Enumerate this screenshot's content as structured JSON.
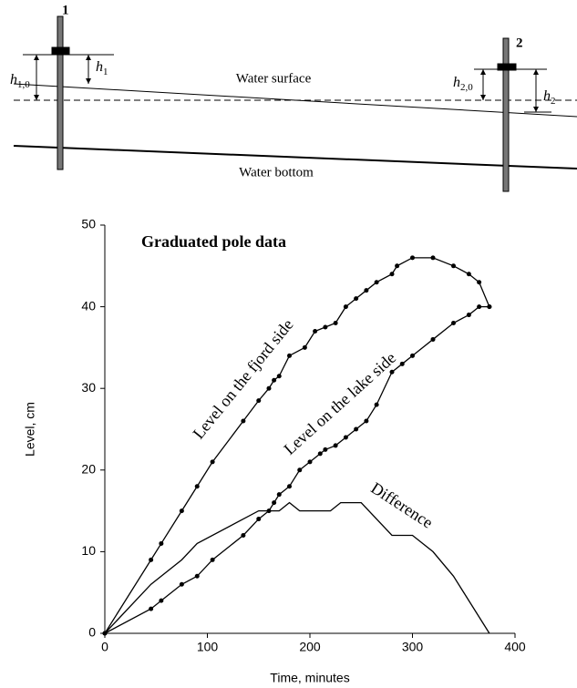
{
  "diagram": {
    "pole_1": "1",
    "pole_2": "2",
    "surface": "Water surface",
    "bottom": "Water bottom",
    "h10": {
      "base": "h",
      "sub": "1,0"
    },
    "h1": {
      "base": "h",
      "sub": "1"
    },
    "h20": {
      "base": "h",
      "sub": "2,0"
    },
    "h2": {
      "base": "h",
      "sub": "2"
    }
  },
  "chart_data": {
    "type": "line",
    "title": "Graduated pole data",
    "x_label": "Time, minutes",
    "y_label": "Level, cm",
    "xlim": [
      0,
      400
    ],
    "ylim": [
      0,
      50
    ],
    "xticks": [
      0,
      100,
      200,
      300,
      400
    ],
    "yticks": [
      0,
      10,
      20,
      30,
      40,
      50
    ],
    "series": [
      {
        "name": "Level on the fjord side",
        "color": "#000",
        "marker": true,
        "x": [
          0,
          45,
          55,
          75,
          90,
          105,
          135,
          150,
          160,
          165,
          170,
          180,
          195,
          205,
          215,
          225,
          235,
          245,
          255,
          265,
          280,
          285,
          300,
          320,
          340,
          355,
          365,
          375
        ],
        "values": [
          0,
          9,
          11,
          15,
          18,
          21,
          26,
          28.5,
          30,
          31,
          31.5,
          34,
          35,
          37,
          37.5,
          38,
          40,
          41,
          42,
          43,
          44,
          45,
          46,
          46,
          45,
          44,
          43,
          40
        ]
      },
      {
        "name": "Level on the lake side",
        "color": "#000",
        "marker": true,
        "x": [
          0,
          45,
          55,
          75,
          90,
          105,
          135,
          150,
          160,
          165,
          170,
          180,
          190,
          200,
          210,
          215,
          225,
          235,
          245,
          255,
          265,
          280,
          290,
          300,
          320,
          340,
          355,
          365,
          375
        ],
        "values": [
          0,
          3,
          4,
          6,
          7,
          9,
          12,
          14,
          15,
          16,
          17,
          18,
          20,
          21,
          22,
          22.5,
          23,
          24,
          25,
          26,
          28,
          32,
          33,
          34,
          36,
          38,
          39,
          40,
          40
        ]
      },
      {
        "name": "Difference",
        "color": "#000",
        "marker": false,
        "x": [
          0,
          45,
          75,
          90,
          150,
          170,
          180,
          190,
          220,
          230,
          250,
          280,
          300,
          320,
          340,
          375
        ],
        "values": [
          0,
          6,
          9,
          11,
          15,
          15,
          16,
          15,
          15,
          16,
          16,
          12,
          12,
          10,
          7,
          0
        ]
      }
    ]
  }
}
